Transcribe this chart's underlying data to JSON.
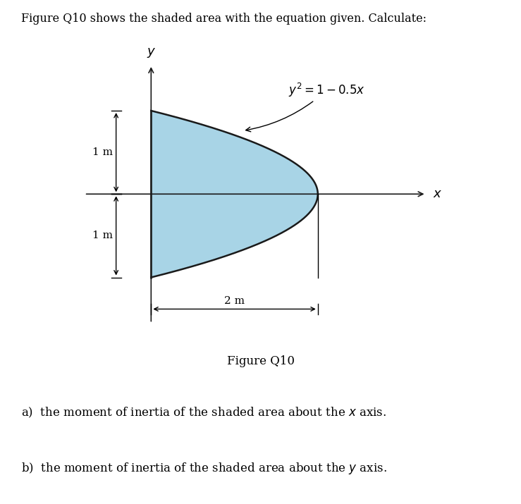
{
  "title_text": "Figure Q10 shows the shaded area with the equation given. Calculate:",
  "equation_label": "$y^2 = 1 - 0.5x$",
  "figure_label": "Figure Q10",
  "label_1m_top": "1 m",
  "label_1m_bottom": "1 m",
  "label_2m": "2 m",
  "xlabel": "$x$",
  "ylabel": "$y$",
  "question_a": "a)  the moment of inertia of the shaded area about the $x$ axis.",
  "question_b": "b)  the moment of inertia of the shaded area about the $y$ axis.",
  "shaded_color": "#a8d4e6",
  "shaded_edge_color": "#1a1a1a",
  "axis_color": "#1a1a1a",
  "background_color": "#ffffff",
  "xlim": [
    -1.0,
    3.5
  ],
  "ylim": [
    -1.7,
    1.7
  ]
}
